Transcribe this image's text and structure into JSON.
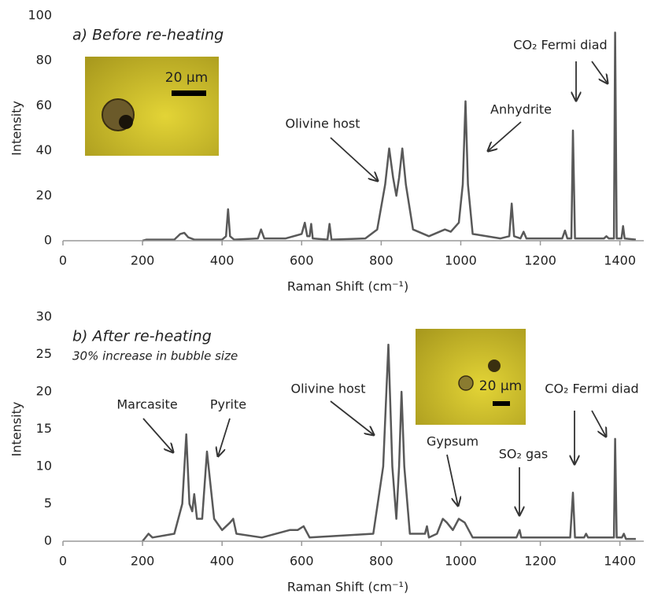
{
  "chart_data": [
    {
      "type": "line",
      "title": "a) Before re-heating",
      "x_label": "Raman Shift (cm⁻¹)",
      "y_label": "Intensity",
      "annotations": [
        "Olivine host",
        "Anhydrite",
        "CO₂ Fermi diad"
      ],
      "scale_label": "20 µm",
      "color": "#595959",
      "xlim": [
        0,
        1460
      ],
      "ylim": [
        0,
        100
      ],
      "xticks": [
        0,
        200,
        400,
        600,
        800,
        1000,
        1200,
        1400
      ],
      "yticks": [
        0,
        20,
        40,
        60,
        80,
        100
      ],
      "x": [
        200,
        210,
        280,
        295,
        305,
        315,
        330,
        400,
        410,
        415,
        420,
        430,
        490,
        498,
        506,
        560,
        600,
        608,
        614,
        620,
        624,
        628,
        665,
        670,
        675,
        760,
        790,
        810,
        820,
        830,
        838,
        845,
        853,
        862,
        880,
        920,
        960,
        975,
        995,
        1005,
        1012,
        1018,
        1030,
        1100,
        1122,
        1128,
        1134,
        1150,
        1158,
        1165,
        1255,
        1262,
        1268,
        1278,
        1282,
        1287,
        1360,
        1366,
        1372,
        1385,
        1388,
        1392,
        1404,
        1408,
        1412,
        1440
      ],
      "values": [
        0,
        0.5,
        0.5,
        3,
        3.5,
        1.5,
        0.5,
        0.5,
        2,
        14,
        2,
        0.5,
        1,
        5,
        1,
        1,
        3,
        8,
        2,
        2,
        7.5,
        1,
        0.5,
        7.5,
        0.5,
        1,
        5,
        25,
        41,
        28,
        20,
        28,
        41,
        25,
        5,
        2,
        5,
        4,
        8,
        25,
        62,
        25,
        3,
        1,
        2,
        16.5,
        2,
        1,
        4,
        1,
        1,
        4.5,
        1,
        1,
        49,
        1,
        1,
        2,
        1,
        1,
        92.5,
        1,
        1,
        6.5,
        1,
        0.5
      ]
    },
    {
      "type": "line",
      "title": "b) After re-heating",
      "subtitle": "30% increase in bubble size",
      "x_label": "Raman Shift (cm⁻¹)",
      "y_label": "Intensity",
      "annotations": [
        "Marcasite",
        "Pyrite",
        "Olivine host",
        "Gypsum",
        "SO₂ gas",
        "CO₂ Fermi diad"
      ],
      "scale_label": "20 µm",
      "color": "#595959",
      "xlim": [
        0,
        1460
      ],
      "ylim": [
        0,
        30
      ],
      "xticks": [
        0,
        200,
        400,
        600,
        800,
        1000,
        1200,
        1400
      ],
      "yticks": [
        0,
        5,
        10,
        15,
        20,
        25,
        30
      ],
      "x": [
        200,
        215,
        225,
        280,
        300,
        310,
        318,
        325,
        330,
        337,
        350,
        362,
        370,
        380,
        400,
        420,
        428,
        436,
        500,
        570,
        590,
        605,
        620,
        780,
        805,
        818,
        828,
        838,
        845,
        851,
        858,
        872,
        910,
        915,
        920,
        940,
        955,
        965,
        980,
        995,
        1010,
        1030,
        1140,
        1148,
        1152,
        1275,
        1282,
        1287,
        1310,
        1315,
        1320,
        1385,
        1388,
        1392,
        1405,
        1410,
        1415,
        1440
      ],
      "values": [
        0,
        1,
        0.5,
        1,
        5,
        14.3,
        5,
        4,
        6.3,
        3,
        3,
        12,
        8,
        3,
        1.5,
        2.5,
        3,
        1,
        0.5,
        1.5,
        1.5,
        2,
        0.5,
        1,
        10,
        26.3,
        10,
        3,
        10,
        20,
        10,
        1,
        1,
        2,
        0.5,
        1,
        3,
        2.5,
        1.5,
        3,
        2.5,
        0.5,
        0.5,
        1.5,
        0.5,
        0.5,
        6.5,
        0.5,
        0.5,
        1,
        0.5,
        0.5,
        13.7,
        0.5,
        0.5,
        1,
        0.3,
        0.3
      ]
    }
  ]
}
